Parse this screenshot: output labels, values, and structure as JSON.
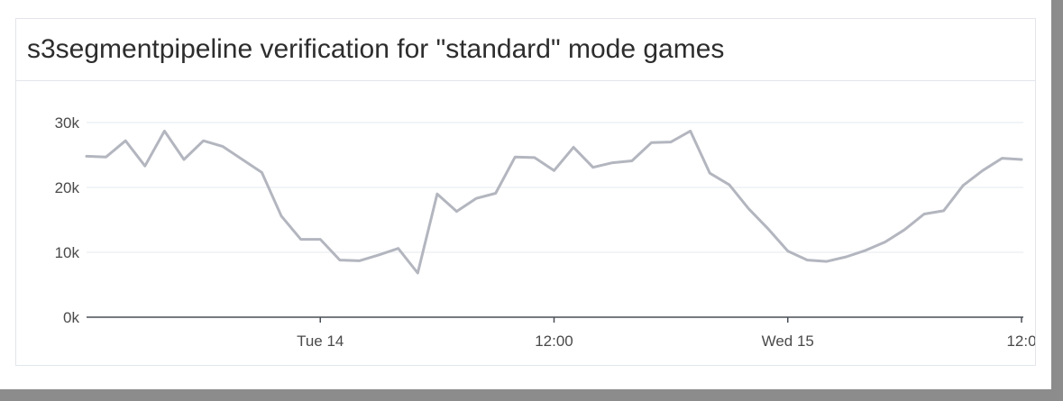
{
  "widget": {
    "title": "s3segmentpipeline verification for \"standard\" mode games"
  },
  "chart_data": {
    "type": "line",
    "title": "s3segmentpipeline verification for \"standard\" mode games",
    "xlabel": "",
    "ylabel": "",
    "x_range_hours": [
      0,
      30
    ],
    "ylim": [
      0,
      30000
    ],
    "y_ticks": [
      {
        "value": 0,
        "label": "0k"
      },
      {
        "value": 10000,
        "label": "10k"
      },
      {
        "value": 20000,
        "label": "20k"
      },
      {
        "value": 30000,
        "label": "30k"
      }
    ],
    "x_ticks": [
      {
        "value": 6,
        "label": "Tue 14"
      },
      {
        "value": 12,
        "label": "12:00"
      },
      {
        "value": 18,
        "label": "Wed 15"
      },
      {
        "value": 24,
        "label": "12:0"
      }
    ],
    "grid": true,
    "series": [
      {
        "color": "#b3b6bf",
        "x": [
          0,
          0.5,
          1,
          1.5,
          2,
          2.5,
          3,
          3.5,
          4,
          4.5,
          5,
          5.5,
          6,
          6.5,
          7,
          7.5,
          8,
          8.5,
          9,
          9.5,
          10,
          10.5,
          11,
          11.5,
          12,
          12.5,
          13,
          13.5,
          14,
          14.5,
          15,
          15.5,
          16,
          16.5,
          17,
          17.5,
          18,
          18.5,
          19,
          19.5,
          20,
          20.5,
          21,
          21.5,
          22,
          22.5,
          23,
          23.5,
          24
        ],
        "values": [
          24800,
          24700,
          27200,
          23300,
          28700,
          24300,
          27200,
          26300,
          24300,
          22300,
          15600,
          12000,
          12000,
          8800,
          8700,
          9600,
          10600,
          6800,
          19000,
          16300,
          18300,
          19100,
          24700,
          24600,
          22600,
          26200,
          23100,
          23800,
          24100,
          26900,
          27000,
          28700,
          22200,
          20400,
          16700,
          13600,
          10200,
          8800,
          8600,
          9300,
          10300,
          11600,
          13500,
          15900,
          16400,
          20300,
          22600,
          24500,
          24300
        ]
      }
    ]
  }
}
